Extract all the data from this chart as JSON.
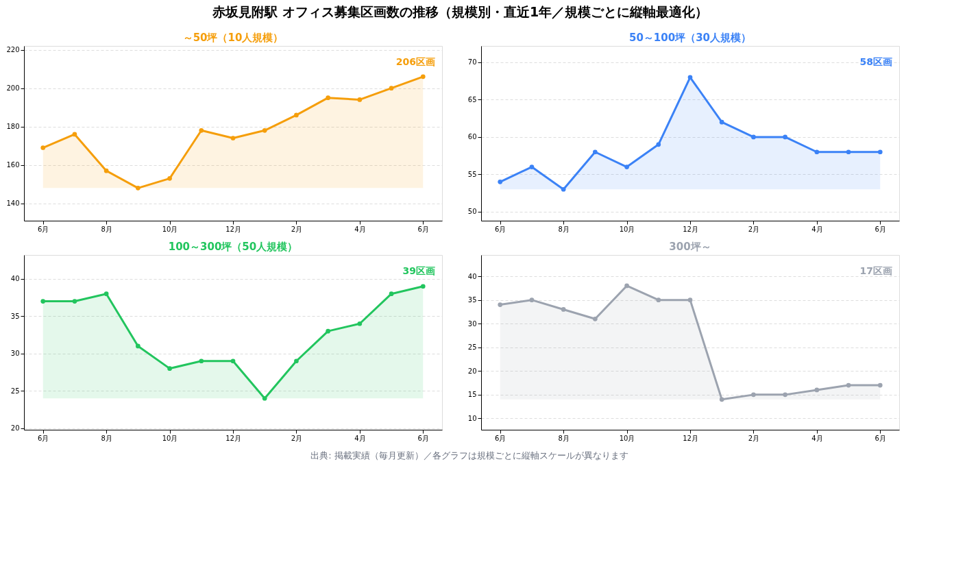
{
  "chart_data": [
    {
      "type": "other",
      "title": "赤坂見附駅 オフィス募集区画数の推移（規模別・直近1年／規模ごとに縦軸最適化）",
      "annotations": [
        "出典: 掲載実績（毎月更新）／各グラフは規模ごとに縦軸スケールが異なります"
      ]
    },
    {
      "type": "area",
      "title": "～50坪（10人規模）",
      "categories": [
        "6月",
        null,
        "8月",
        null,
        "10月",
        null,
        "12月",
        null,
        "2月",
        null,
        "4月",
        null,
        "6月"
      ],
      "series": [
        {
          "color": "#f59e0b",
          "values": [
            169,
            176,
            157,
            148,
            153,
            178,
            174,
            178,
            186,
            195,
            194,
            200,
            206
          ]
        }
      ],
      "ylim": [
        131,
        222
      ],
      "yticks": [
        140,
        160,
        180,
        200,
        220
      ],
      "grid": "y",
      "marker": "circle",
      "annotations": [
        "206区画"
      ]
    },
    {
      "type": "area",
      "title": "50～100坪（30人規模）",
      "categories": [
        "6月",
        null,
        "8月",
        null,
        "10月",
        null,
        "12月",
        null,
        "2月",
        null,
        "4月",
        null,
        "6月"
      ],
      "series": [
        {
          "color": "#3b82f6",
          "values": [
            54,
            56,
            53,
            58,
            56,
            59,
            68,
            62,
            60,
            60,
            58,
            58,
            58
          ]
        }
      ],
      "ylim": [
        48.8,
        72.2
      ],
      "yticks": [
        50,
        55,
        60,
        65,
        70
      ],
      "grid": "y",
      "marker": "circle",
      "annotations": [
        "58区画"
      ]
    },
    {
      "type": "area",
      "title": "100～300坪（50人規模）",
      "categories": [
        "6月",
        null,
        "8月",
        null,
        "10月",
        null,
        "12月",
        null,
        "2月",
        null,
        "4月",
        null,
        "6月"
      ],
      "series": [
        {
          "color": "#22c55e",
          "values": [
            37,
            37,
            38,
            31,
            28,
            29,
            29,
            24,
            29,
            33,
            34,
            38,
            39
          ]
        }
      ],
      "ylim": [
        19.8,
        43.2
      ],
      "yticks": [
        20,
        25,
        30,
        35,
        40
      ],
      "grid": "y",
      "marker": "circle",
      "annotations": [
        "39区画"
      ]
    },
    {
      "type": "area",
      "title": "300坪～",
      "categories": [
        "6月",
        null,
        "8月",
        null,
        "10月",
        null,
        "12月",
        null,
        "2月",
        null,
        "4月",
        null,
        "6月"
      ],
      "series": [
        {
          "color": "#9ca3af",
          "values": [
            34,
            35,
            33,
            31,
            38,
            35,
            35,
            14,
            15,
            15,
            16,
            17,
            17
          ]
        }
      ],
      "ylim": [
        7.6,
        44.5
      ],
      "yticks": [
        10,
        15,
        20,
        25,
        30,
        35,
        40
      ],
      "grid": "y",
      "marker": "circle",
      "annotations": [
        "17区画"
      ]
    }
  ]
}
